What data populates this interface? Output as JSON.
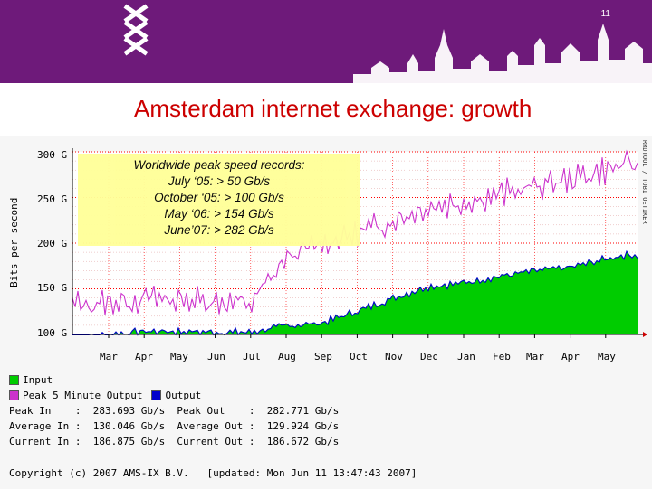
{
  "slide": {
    "number": "11",
    "title": "Amsterdam internet exchange: growth",
    "logo": "triple-x-logo",
    "skyline": "amsterdam-skyline"
  },
  "records_box": {
    "heading": "Worldwide peak speed records:",
    "lines": [
      "July ‘05: > 50 Gb/s",
      "October ‘05: > 100 Gb/s",
      "May ‘06: > 154 Gb/s",
      "June’07: > 282 Gb/s"
    ]
  },
  "graph": {
    "ylabel": "Bits per second",
    "credit": "RRDTOOL / TOBI OETIKER",
    "yticks": [
      "300 G",
      "250 G",
      "200 G",
      "150 G",
      "100 G"
    ],
    "xticks": [
      "Mar",
      "Apr",
      "May",
      "Jun",
      "Jul",
      "Aug",
      "Sep",
      "Oct",
      "Nov",
      "Dec",
      "Jan",
      "Feb",
      "Mar",
      "Apr",
      "May"
    ],
    "colors": {
      "input": "#00cc00",
      "peak5": "#cc33cc",
      "output": "#0000cc",
      "grid": "#ff0000"
    }
  },
  "chart_data": {
    "type": "area",
    "ylabel": "Bits per second",
    "ylim_gbps": [
      100,
      300
    ],
    "x": [
      "Mar",
      "Apr",
      "May",
      "Jun",
      "Jul",
      "Aug",
      "Sep",
      "Oct",
      "Nov",
      "Dec",
      "Jan",
      "Feb",
      "Mar",
      "Apr",
      "May"
    ],
    "series": [
      {
        "name": "Input",
        "values": [
          100,
          104,
          104,
          103,
          103,
          110,
          113,
          126,
          140,
          153,
          157,
          164,
          170,
          174,
          183
        ]
      },
      {
        "name": "Output",
        "values": [
          100,
          104,
          104,
          103,
          103,
          110,
          113,
          126,
          140,
          153,
          157,
          164,
          170,
          174,
          182
        ]
      },
      {
        "name": "Peak 5 Minute Output",
        "values": [
          135,
          139,
          138,
          137,
          133,
          183,
          200,
          210,
          225,
          240,
          245,
          253,
          262,
          270,
          280
        ]
      }
    ]
  },
  "legend": {
    "input": "Input",
    "peak5": "Peak 5 Minute Output",
    "output": "Output"
  },
  "stats": {
    "line1": "Peak In    :  283.693 Gb/s  Peak Out    :  282.771 Gb/s",
    "line2": "Average In :  130.046 Gb/s  Average Out :  129.924 Gb/s",
    "line3": "Current In :  186.875 Gb/s  Current Out :  186.672 Gb/s"
  },
  "footer": {
    "copyright": "Copyright (c) 2007 AMS-IX B.V.   [updated: Mon Jun 11 13:47:43 2007]"
  }
}
